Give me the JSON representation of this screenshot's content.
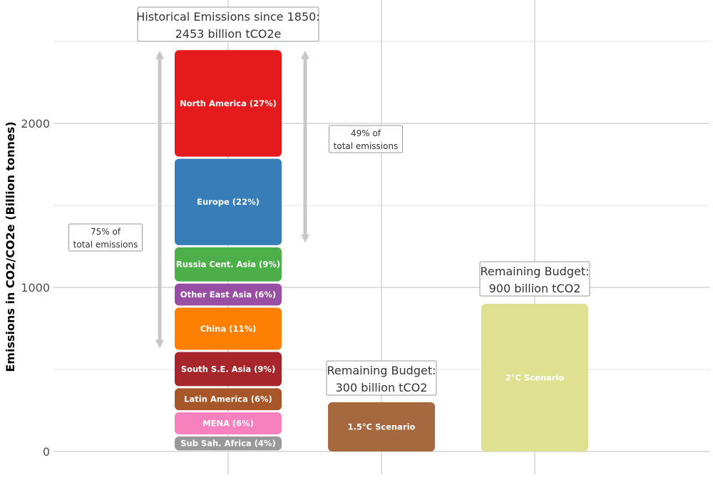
{
  "chart_data": {
    "type": "bar",
    "ylabel": "Emissions in CO2/CO2e (Billion tonnes)",
    "ylim": [
      0,
      2650
    ],
    "yticks": [
      0,
      1000,
      2000
    ],
    "grid": true,
    "stacked_bar": {
      "segments": [
        {
          "label": "Sub Sah. Africa (4%)",
          "value": 98,
          "color": "#999999"
        },
        {
          "label": "MENA (6%)",
          "value": 147,
          "color": "#f781bf"
        },
        {
          "label": "Latin America (6%)",
          "value": 147,
          "color": "#a65628"
        },
        {
          "label": "South S.E. Asia (9%)",
          "value": 221,
          "color": "#a6262b"
        },
        {
          "label": "China (11%)",
          "value": 270,
          "color": "#ff7f00"
        },
        {
          "label": "Other East Asia (6%)",
          "value": 147,
          "color": "#984ea3"
        },
        {
          "label": "Russia Cent. Asia (9%)",
          "value": 221,
          "color": "#4daf4a"
        },
        {
          "label": "Europe (22%)",
          "value": 540,
          "color": "#377eb8"
        },
        {
          "label": "North America (27%)",
          "value": 662,
          "color": "#e41a1c"
        }
      ],
      "annotation": [
        "Historical Emissions since 1850:",
        "2453  billion tCO2e"
      ]
    },
    "scenarios": [
      {
        "label": "1.5°C Scenario",
        "value": 300,
        "color": "#a6693f",
        "annotation": [
          "Remaining Budget:",
          "300 billion tCO2"
        ]
      },
      {
        "label": "2°C Scenario",
        "value": 900,
        "color": "#dfe191",
        "annotation": [
          "Remaining Budget:",
          "900 billion tCO2"
        ]
      }
    ],
    "brackets": [
      {
        "from": 2453,
        "to": 628,
        "label": [
          "75% of",
          "total emissions"
        ]
      },
      {
        "from": 2453,
        "to": 1272,
        "label": [
          "49% of",
          "total emissions"
        ]
      }
    ]
  }
}
